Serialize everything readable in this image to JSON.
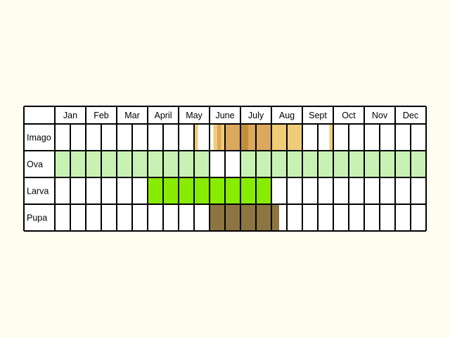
{
  "months": [
    "Jan",
    "Feb",
    "Mar",
    "April",
    "May",
    "June",
    "July",
    "Aug",
    "Sept",
    "Oct",
    "Nov",
    "Dec"
  ],
  "colors": {
    "grid": "#000000",
    "background": "#fffdf0",
    "ova": "#c8f2b4",
    "larva": "#88ec00",
    "pupa": "#8c7540",
    "imago_light": "#f0cc78",
    "imago_mid": "#dca85e",
    "imago_dark": "#c08f38"
  },
  "stages": [
    {
      "name": "Imago",
      "segments": [
        {
          "start": 9.0,
          "end": 9.25,
          "color": "imago_light"
        },
        {
          "start": 10.25,
          "end": 10.5,
          "color": "imago_light"
        },
        {
          "start": 10.5,
          "end": 10.75,
          "color": "imago_mid"
        },
        {
          "start": 10.75,
          "end": 11.0,
          "color": "imago_light"
        },
        {
          "start": 11.0,
          "end": 11.5,
          "color": "imago_mid"
        },
        {
          "start": 11.5,
          "end": 12.0,
          "color": "imago_mid"
        },
        {
          "start": 12.0,
          "end": 12.5,
          "color": "imago_dark"
        },
        {
          "start": 12.5,
          "end": 13.0,
          "color": "imago_mid"
        },
        {
          "start": 13.0,
          "end": 14.0,
          "color": "imago_mid"
        },
        {
          "start": 14.0,
          "end": 16.0,
          "color": "imago_light"
        },
        {
          "start": 17.75,
          "end": 18.0,
          "color": "imago_light"
        }
      ]
    },
    {
      "name": "Ova",
      "segments": [
        {
          "start": 0,
          "end": 10,
          "color": "ova"
        },
        {
          "start": 12,
          "end": 24,
          "color": "ova"
        }
      ]
    },
    {
      "name": "Larva",
      "segments": [
        {
          "start": 6,
          "end": 14,
          "color": "larva"
        }
      ]
    },
    {
      "name": "Pupa",
      "segments": [
        {
          "start": 10,
          "end": 14.5,
          "color": "pupa"
        }
      ]
    }
  ]
}
